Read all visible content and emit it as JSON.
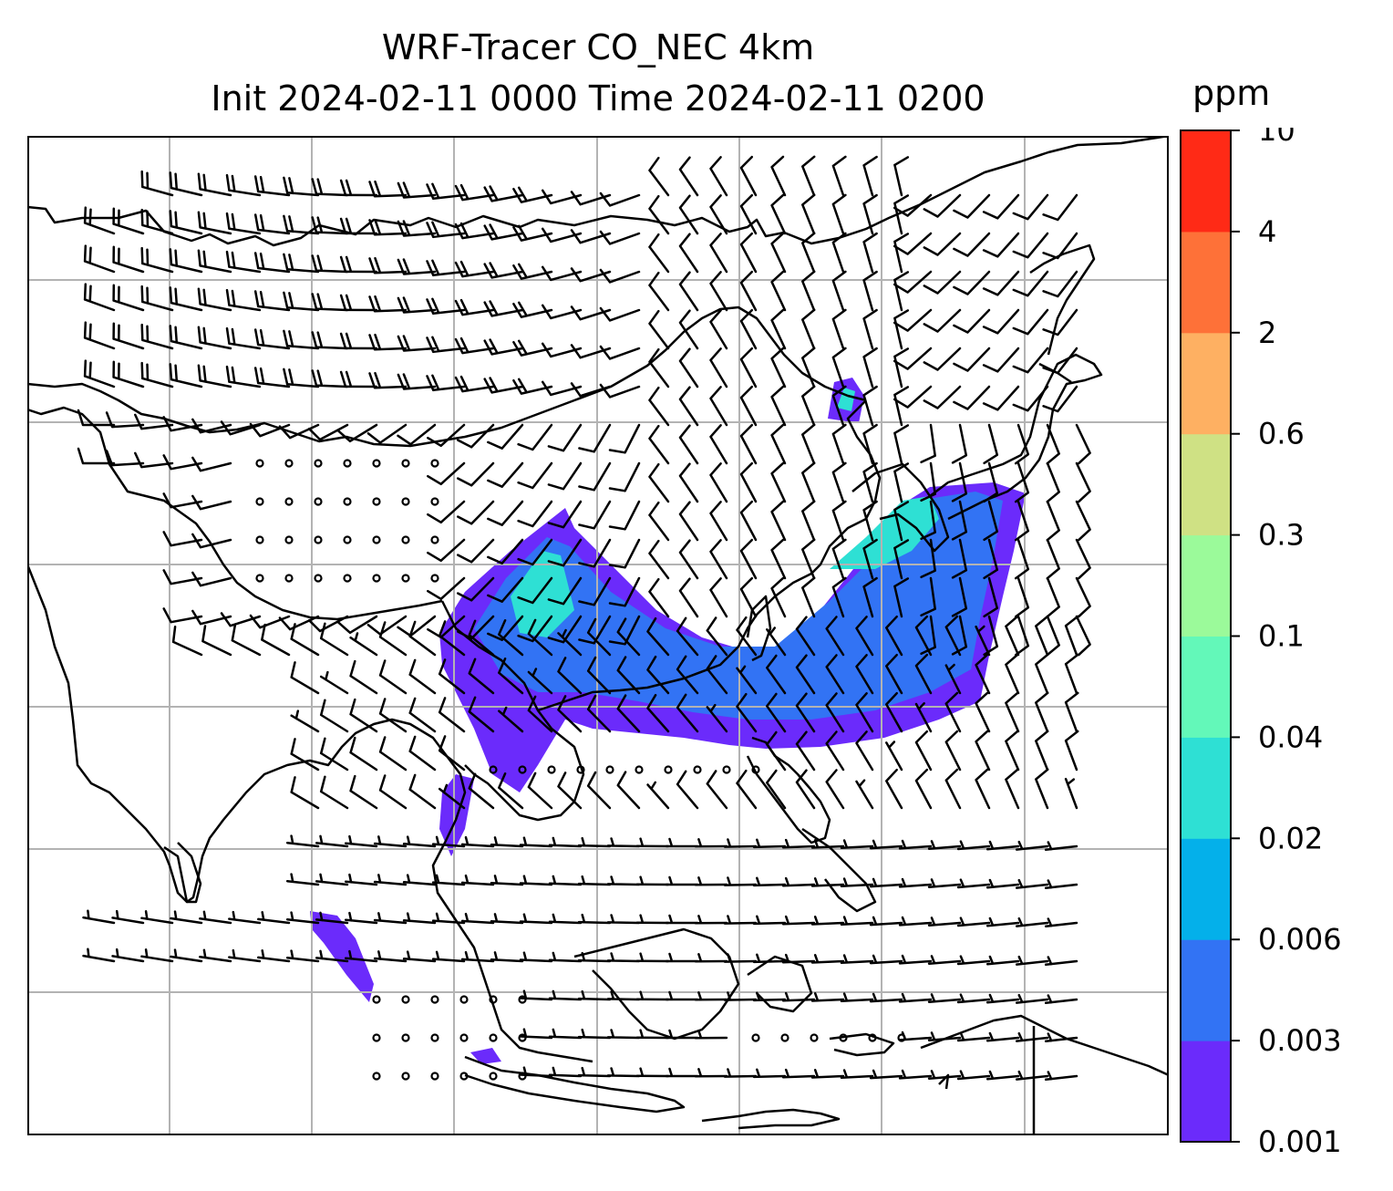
{
  "title": {
    "line1": "WRF-Tracer CO_NEC 4km",
    "line2": "Init 2024-02-11 0000 Time 2024-02-11 0200"
  },
  "colorbar": {
    "unit": "ppm",
    "ticks": [
      "0.001",
      "0.003",
      "0.006",
      "0.02",
      "0.04",
      "0.1",
      "0.3",
      "0.6",
      "2",
      "4",
      "10"
    ],
    "colors": [
      "#6b2bfb",
      "#3273f4",
      "#04b0ea",
      "#2ee0d4",
      "#63f8b9",
      "#9bfa9a",
      "#cfe184",
      "#feb062",
      "#fe7138",
      "#ff2a16"
    ]
  },
  "map": {
    "grid": true,
    "wind_barbs": "black",
    "coastlines": "black",
    "plume_colors": {
      "low": "#6b2bfb",
      "mid": "#3273f4",
      "high": "#2ee0d4"
    }
  }
}
